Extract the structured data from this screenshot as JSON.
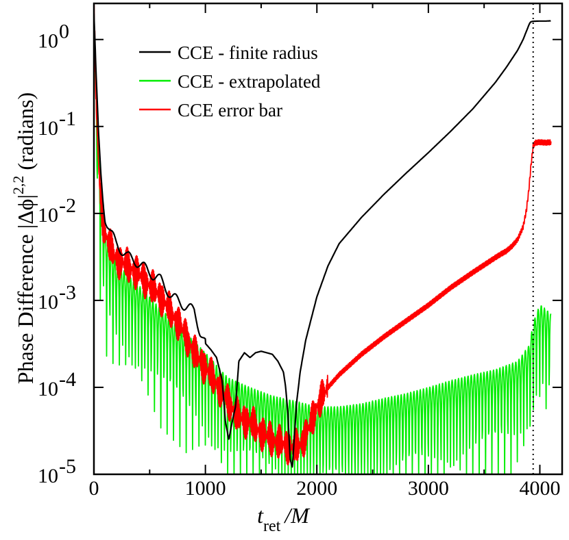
{
  "chart_data": {
    "type": "line",
    "title": "",
    "xlabel": "t_ret /M",
    "xlabel_main": "t",
    "xlabel_sub": "ret",
    "xlabel_rest": "/M",
    "ylabel": "Phase Difference |Δϕ|^{2,2} (radians)",
    "ylabel_main": "Phase Difference |Δϕ|",
    "ylabel_sup": "2,2",
    "ylabel_rest": "(radians)",
    "xscale": "linear",
    "yscale": "log",
    "xlim": [
      0,
      4200
    ],
    "ylim": [
      1e-05,
      2.6
    ],
    "xticks": [
      0,
      1000,
      2000,
      3000,
      4000
    ],
    "xtick_labels": [
      "0",
      "1000",
      "2000",
      "3000",
      "4000"
    ],
    "yticks": [
      1e-05,
      0.0001,
      0.001,
      0.01,
      0.1,
      1
    ],
    "ytick_mantissa": [
      "10",
      "10",
      "10",
      "10",
      "10",
      "10"
    ],
    "ytick_exponent": [
      "-5",
      "-4",
      "-3",
      "-2",
      "-1",
      "0"
    ],
    "grid": false,
    "legend_position": "top-left",
    "vline": {
      "x": 3940,
      "style": "dotted",
      "color": "#000000"
    },
    "series": [
      {
        "name": "CCE - finite radius",
        "color": "#000000",
        "x": [
          0,
          20,
          40,
          60,
          80,
          100,
          150,
          200,
          300,
          400,
          500,
          600,
          700,
          800,
          900,
          950,
          1000,
          1050,
          1100,
          1150,
          1180,
          1210,
          1240,
          1270,
          1300,
          1350,
          1400,
          1450,
          1500,
          1550,
          1600,
          1650,
          1700,
          1720,
          1740,
          1760,
          1780,
          1800,
          1820,
          1850,
          1900,
          2000,
          2100,
          2200,
          2400,
          2600,
          2800,
          3000,
          3200,
          3400,
          3600,
          3700,
          3800,
          3850,
          3880,
          3900,
          3910,
          3920,
          3940,
          4000,
          4060,
          4100
        ],
        "y": [
          2.0,
          0.35,
          0.08,
          0.03,
          0.015,
          0.009,
          0.006,
          0.0045,
          0.0032,
          0.0027,
          0.0021,
          0.0017,
          0.0011,
          0.0009,
          0.00075,
          0.00045,
          0.00032,
          0.00027,
          0.00022,
          0.00012,
          4e-05,
          2.5e-05,
          4e-05,
          6e-05,
          0.0002,
          0.00025,
          0.00022,
          0.00025,
          0.00026,
          0.00025,
          0.00024,
          0.0002,
          0.00015,
          0.0001,
          5e-05,
          1.5e-05,
          1.2e-05,
          3e-05,
          7e-05,
          0.00015,
          0.00035,
          0.0011,
          0.0025,
          0.0045,
          0.009,
          0.0165,
          0.029,
          0.05,
          0.088,
          0.16,
          0.32,
          0.48,
          0.75,
          1.0,
          1.25,
          1.45,
          1.55,
          1.6,
          1.62,
          1.63,
          1.63,
          1.64
        ]
      },
      {
        "name": "CCE - extrapolated",
        "color": "#00ee00",
        "x": [
          0,
          20,
          40,
          60,
          80,
          100,
          150,
          200,
          300,
          400,
          500,
          600,
          700,
          800,
          900,
          1000,
          1200,
          1400,
          1600,
          1800,
          2000,
          2200,
          2400,
          2600,
          2800,
          3000,
          3200,
          3400,
          3600,
          3800,
          3900,
          3950,
          4000,
          4050,
          4100
        ],
        "y": [
          2.0,
          0.3,
          0.06,
          0.02,
          0.01,
          0.006,
          0.004,
          0.0028,
          0.002,
          0.0015,
          0.0011,
          0.0008,
          0.0006,
          0.00045,
          0.00034,
          0.00025,
          0.00013,
          0.0001,
          8e-05,
          7e-05,
          6e-05,
          6e-05,
          6.5e-05,
          7.5e-05,
          8.5e-05,
          0.0001,
          0.00012,
          0.00014,
          0.00016,
          0.0002,
          0.0003,
          0.0006,
          0.0009,
          0.0008,
          0.0007
        ]
      },
      {
        "name": "CCE error bar",
        "color": "#ff0000",
        "x": [
          0,
          20,
          40,
          60,
          80,
          100,
          150,
          200,
          300,
          400,
          500,
          600,
          700,
          800,
          900,
          1000,
          1100,
          1200,
          1300,
          1400,
          1500,
          1600,
          1700,
          1800,
          1850,
          1900,
          1950,
          2000,
          2100,
          2200,
          2400,
          2600,
          2800,
          3000,
          3200,
          3400,
          3600,
          3650,
          3700,
          3750,
          3800,
          3850,
          3880,
          3900,
          3920,
          3940,
          3960,
          4000,
          4050,
          4100
        ],
        "y": [
          2.0,
          0.2,
          0.04,
          0.015,
          0.008,
          0.006,
          0.004,
          0.003,
          0.0025,
          0.002,
          0.0015,
          0.0011,
          0.0007,
          0.00045,
          0.00025,
          0.00017,
          0.00011,
          7e-05,
          4.5e-05,
          4e-05,
          3e-05,
          2.5e-05,
          2.2e-05,
          2e-05,
          2.2e-05,
          2.8e-05,
          4e-05,
          6e-05,
          0.0001,
          0.00014,
          0.00024,
          0.00038,
          0.00058,
          0.00088,
          0.0014,
          0.0021,
          0.0031,
          0.0034,
          0.0037,
          0.0042,
          0.005,
          0.007,
          0.011,
          0.018,
          0.035,
          0.06,
          0.065,
          0.066,
          0.065,
          0.066
        ]
      }
    ]
  }
}
